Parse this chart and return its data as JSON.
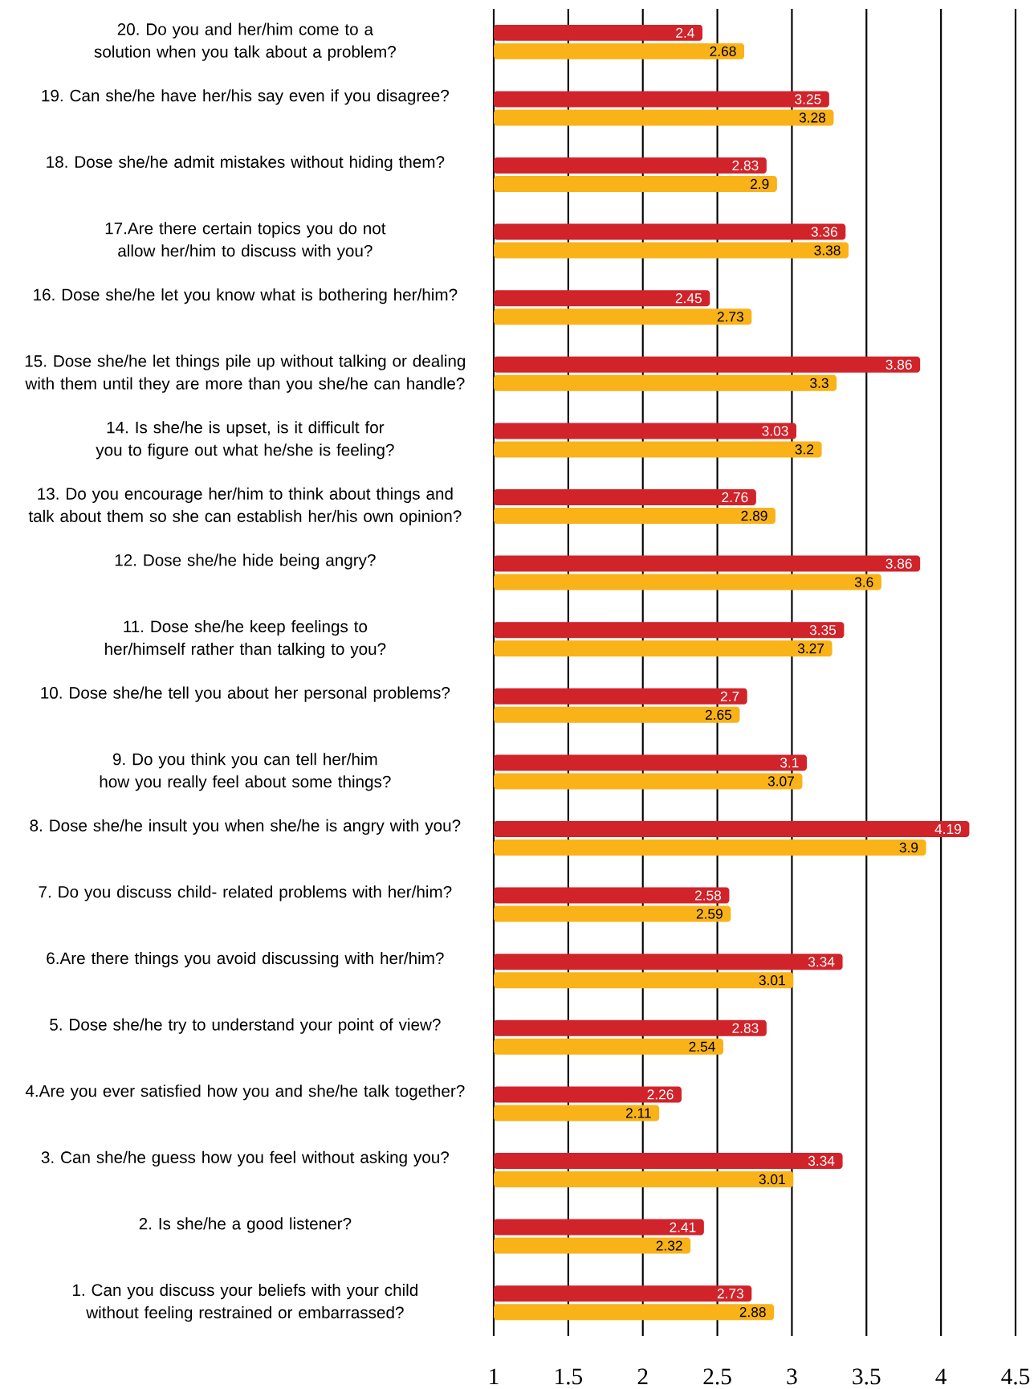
{
  "chart_data": {
    "type": "bar",
    "orientation": "horizontal",
    "categories": [
      "20. Do you and her/him come to a solution when you talk about a problem?",
      "19. Can she/he have her/his say even if you disagree?",
      "18. Dose she/he admit mistakes without hiding them?",
      "17.Are there certain topics you do not allow her/him to discuss with you?",
      "16. Dose she/he let you know what is bothering her/him?",
      "15. Dose she/he let things pile up without talking or dealing with them until they are more than you she/he can handle?",
      "14. Is she/he is upset, is it difficult for you to figure out what he/she is feeling?",
      "13. Do you encourage her/him to think about things and talk about them so she can establish her/his own opinion?",
      "12. Dose she/he hide being angry?",
      "11. Dose she/he keep feelings to her/himself rather than talking to you?",
      "10. Dose she/he tell you about her personal problems?",
      "9. Do you think you can tell her/him how you really feel about some things?",
      "8. Dose she/he insult you when she/he is angry with you?",
      "7. Do you discuss child- related problems with her/him?",
      "6.Are there things you avoid discussing with her/him?",
      "5. Dose she/he try to understand your point of view?",
      "4.Are you ever satisfied how you and she/he talk together?",
      "3. Can she/he guess how you feel without asking you?",
      "2. Is she/he a good listener?",
      "1. Can you discuss your beliefs with your child without feeling restrained or embarrassed?"
    ],
    "series": [
      {
        "color": "#d1232a",
        "values": [
          2.4,
          3.25,
          2.83,
          3.36,
          2.45,
          3.86,
          3.03,
          2.76,
          3.86,
          3.35,
          2.7,
          3.1,
          4.19,
          2.58,
          3.34,
          2.83,
          2.26,
          3.34,
          2.41,
          2.73
        ]
      },
      {
        "color": "#f9b218",
        "values": [
          2.68,
          3.28,
          2.9,
          3.38,
          2.73,
          3.3,
          3.2,
          2.89,
          3.6,
          3.27,
          2.65,
          3.07,
          3.9,
          2.59,
          3.01,
          2.54,
          2.11,
          3.01,
          2.32,
          2.88
        ]
      }
    ],
    "xlim": [
      1,
      4.5
    ],
    "xticks": [
      1,
      1.5,
      2,
      2.5,
      3,
      3.5,
      4,
      4.5
    ],
    "grid": "x",
    "data_labels": true
  }
}
